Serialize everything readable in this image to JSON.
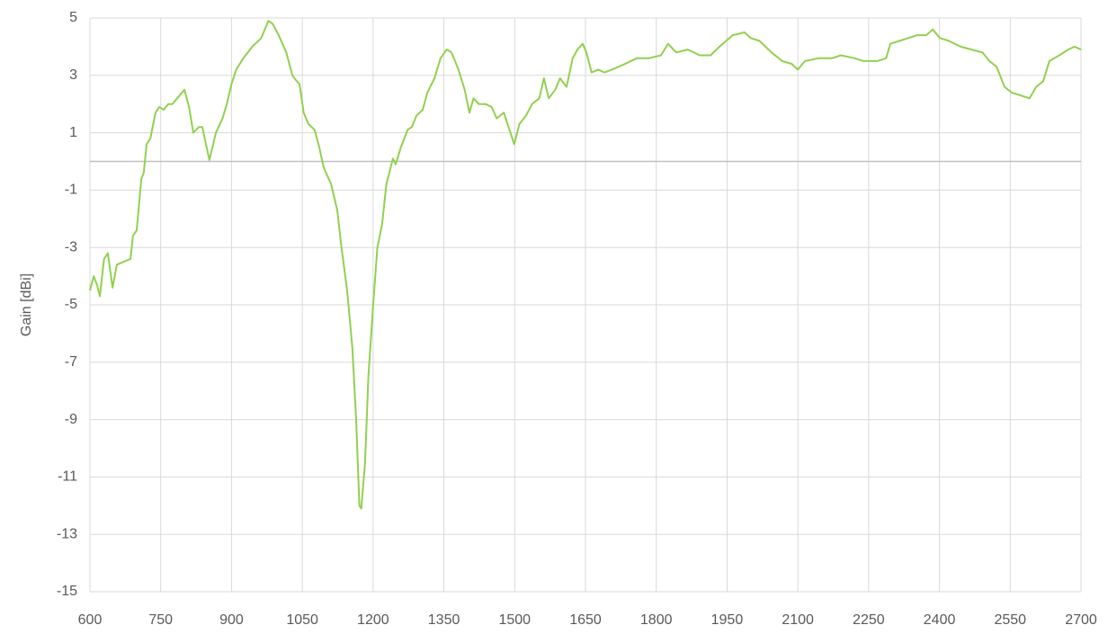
{
  "chart_data": {
    "type": "line",
    "y_label": "Gain [dBi]",
    "x": [
      600,
      608,
      615,
      621,
      630,
      638,
      648,
      657,
      671,
      686,
      691,
      699,
      709,
      714,
      720,
      728,
      739,
      747,
      756,
      766,
      775,
      785,
      800,
      810,
      819,
      831,
      838,
      853,
      867,
      881,
      890,
      900,
      910,
      925,
      944,
      963,
      978,
      987,
      1000,
      1016,
      1029,
      1038,
      1044,
      1053,
      1063,
      1076,
      1086,
      1095,
      1111,
      1124,
      1133,
      1145,
      1156,
      1164,
      1171,
      1175,
      1183,
      1190,
      1200,
      1209,
      1219,
      1228,
      1242,
      1248,
      1259,
      1273,
      1282,
      1292,
      1305,
      1315,
      1330,
      1343,
      1356,
      1366,
      1381,
      1394,
      1404,
      1413,
      1424,
      1438,
      1451,
      1462,
      1477,
      1489,
      1499,
      1510,
      1524,
      1537,
      1552,
      1562,
      1572,
      1586,
      1596,
      1610,
      1623,
      1633,
      1644,
      1652,
      1663,
      1677,
      1690,
      1706,
      1734,
      1759,
      1785,
      1810,
      1825,
      1842,
      1867,
      1892,
      1915,
      1934,
      1962,
      1987,
      2000,
      2019,
      2044,
      2067,
      2087,
      2100,
      2115,
      2144,
      2173,
      2191,
      2220,
      2239,
      2268,
      2287,
      2296,
      2315,
      2334,
      2353,
      2372,
      2386,
      2401,
      2420,
      2445,
      2468,
      2491,
      2506,
      2521,
      2538,
      2553,
      2572,
      2591,
      2605,
      2620,
      2633,
      2654,
      2673,
      2686,
      2700
    ],
    "series": [
      {
        "name": "Gain",
        "color": "#92d050",
        "values": [
          -4.5,
          -4.0,
          -4.3,
          -4.7,
          -3.4,
          -3.2,
          -4.4,
          -3.6,
          -3.5,
          -3.4,
          -2.6,
          -2.4,
          -0.6,
          -0.4,
          0.6,
          0.8,
          1.7,
          1.9,
          1.8,
          2.0,
          2.0,
          2.2,
          2.5,
          1.9,
          1.0,
          1.2,
          1.2,
          0.05,
          1.0,
          1.5,
          2.0,
          2.7,
          3.2,
          3.6,
          4.0,
          4.3,
          4.9,
          4.8,
          4.4,
          3.8,
          3.0,
          2.8,
          2.7,
          1.7,
          1.3,
          1.1,
          0.5,
          -0.2,
          -0.8,
          -1.7,
          -3.0,
          -4.5,
          -6.5,
          -9.0,
          -12.0,
          -12.1,
          -10.5,
          -7.5,
          -5.0,
          -3.0,
          -2.2,
          -0.8,
          0.1,
          -0.1,
          0.5,
          1.1,
          1.2,
          1.6,
          1.8,
          2.4,
          2.9,
          3.6,
          3.9,
          3.8,
          3.2,
          2.5,
          1.7,
          2.2,
          2.0,
          2.0,
          1.9,
          1.5,
          1.7,
          1.1,
          0.6,
          1.3,
          1.6,
          2.0,
          2.2,
          2.9,
          2.2,
          2.5,
          2.9,
          2.6,
          3.6,
          3.9,
          4.1,
          3.8,
          3.1,
          3.2,
          3.1,
          3.2,
          3.4,
          3.6,
          3.6,
          3.7,
          4.1,
          3.8,
          3.9,
          3.7,
          3.7,
          4.0,
          4.4,
          4.5,
          4.3,
          4.2,
          3.8,
          3.5,
          3.4,
          3.2,
          3.5,
          3.6,
          3.6,
          3.7,
          3.6,
          3.5,
          3.5,
          3.6,
          4.1,
          4.2,
          4.3,
          4.4,
          4.4,
          4.6,
          4.3,
          4.2,
          4.0,
          3.9,
          3.8,
          3.5,
          3.3,
          2.6,
          2.4,
          2.3,
          2.2,
          2.6,
          2.8,
          3.5,
          3.7,
          3.9,
          4.0,
          3.9
        ]
      }
    ],
    "xlim": [
      600,
      2700
    ],
    "xticks": [
      600,
      750,
      900,
      1050,
      1200,
      1350,
      1500,
      1650,
      1800,
      1950,
      2100,
      2250,
      2400,
      2550,
      2700
    ],
    "ylim": [
      -15,
      5
    ],
    "yticks": [
      -15,
      -13,
      -11,
      -9,
      -7,
      -5,
      -3,
      -1,
      1,
      3,
      5
    ],
    "grid": true
  }
}
